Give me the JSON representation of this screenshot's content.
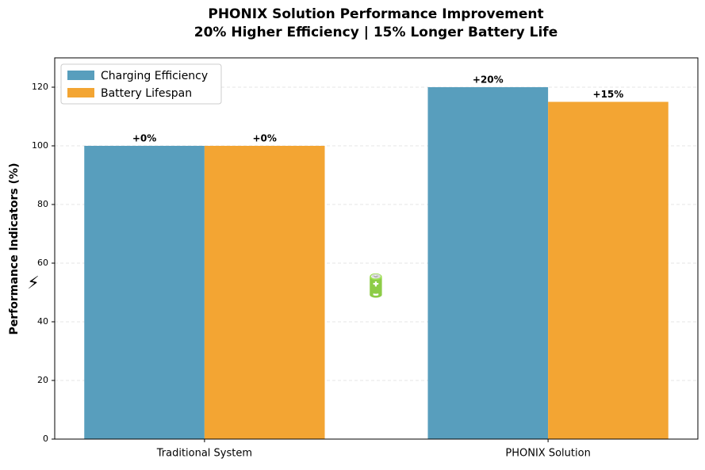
{
  "chart_data": {
    "type": "bar",
    "title": [
      "PHONIX Solution Performance Improvement",
      "20% Higher Efficiency | 15% Longer Battery Life"
    ],
    "ylabel": "Performance Indicators (%)",
    "categories": [
      "Traditional System",
      "PHONIX Solution"
    ],
    "series": [
      {
        "name": "Charging Efficiency",
        "color": "#589ebd",
        "values": [
          100,
          120
        ],
        "change_labels": [
          "+0%",
          "+20%"
        ]
      },
      {
        "name": "Battery Lifespan",
        "color": "#f3a533",
        "values": [
          100,
          115
        ],
        "change_labels": [
          "+0%",
          "+15%"
        ]
      }
    ],
    "ylim": [
      0,
      130
    ],
    "yticks": [
      0,
      20,
      40,
      60,
      80,
      100,
      120
    ],
    "grid": true,
    "legend": "upper-left",
    "annotations": [
      "⚡",
      "🔋"
    ]
  }
}
